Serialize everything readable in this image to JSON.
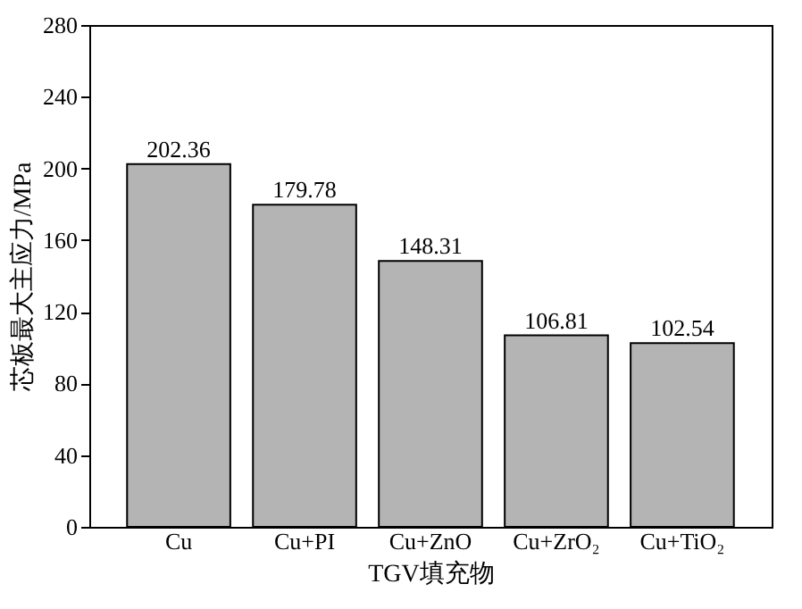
{
  "chart_data": {
    "type": "bar",
    "xlabel": "TGV填充物",
    "ylabel": "芯板最大主应力/MPa",
    "categories": [
      "Cu",
      "Cu+PI",
      "Cu+ZnO",
      "Cu+ZrO₂",
      "Cu+TiO₂"
    ],
    "values": [
      202.36,
      179.78,
      148.31,
      106.81,
      102.54
    ],
    "color": "#b4b4b4",
    "ylim": [
      0,
      280
    ],
    "yticks": [
      0,
      40,
      80,
      120,
      160,
      200,
      240,
      280
    ],
    "data_labels": true,
    "grid": false
  }
}
